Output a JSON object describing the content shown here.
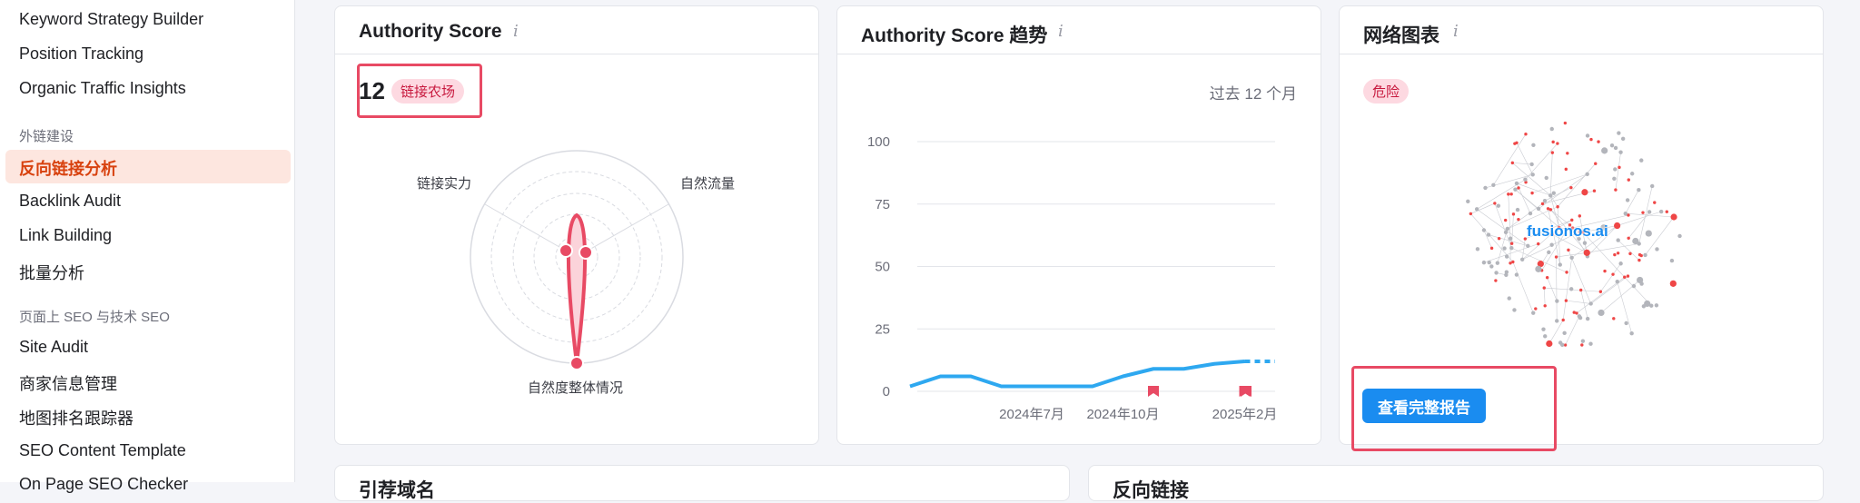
{
  "sidebar": {
    "items_top": [
      {
        "label": "Keyword Strategy Builder"
      },
      {
        "label": "Position Tracking"
      },
      {
        "label": "Organic Traffic Insights"
      }
    ],
    "section_links": "外链建设",
    "items_links": [
      {
        "label": "反向链接分析",
        "active": true
      },
      {
        "label": "Backlink Audit"
      },
      {
        "label": "Link Building"
      },
      {
        "label": "批量分析"
      }
    ],
    "section_onpage": "页面上 SEO 与技术 SEO",
    "items_onpage": [
      {
        "label": "Site Audit"
      },
      {
        "label": "商家信息管理"
      },
      {
        "label": "地图排名跟踪器"
      },
      {
        "label": "SEO Content Template"
      },
      {
        "label": "On Page SEO Checker"
      }
    ]
  },
  "authority_card": {
    "title": "Authority Score",
    "info_icon": "info-icon",
    "score": "12",
    "badge": "链接农场",
    "radar_labels": {
      "link_power": "链接实力",
      "organic_traffic": "自然流量",
      "naturalness": "自然度整体情况"
    },
    "colors": {
      "accent": "#e84a64",
      "fill": "#fbd3da"
    }
  },
  "trend_card": {
    "title": "Authority Score 趋势",
    "info_icon": "info-icon",
    "period": "过去 12 个月",
    "chart_data": {
      "type": "line",
      "title": "Authority Score 趋势",
      "x": [
        "2024-03",
        "2024-04",
        "2024-05",
        "2024-06",
        "2024-07",
        "2024-08",
        "2024-09",
        "2024-10",
        "2024-11",
        "2024-12",
        "2025-01",
        "2025-02",
        "2025-03"
      ],
      "x_tick_labels": [
        "2024年7月",
        "2024年10月",
        "2025年2月"
      ],
      "series": [
        {
          "values": [
            2,
            6,
            6,
            2,
            2,
            2,
            2,
            6,
            9,
            9,
            11,
            12,
            12
          ],
          "color": "#2ea8f0"
        }
      ],
      "markers": [
        "2024-11",
        "2025-02",
        "2025-03"
      ],
      "ylim": [
        0,
        100
      ],
      "yticks": [
        0,
        25,
        50,
        75,
        100
      ],
      "grid": true
    }
  },
  "network_card": {
    "title": "网络图表",
    "info_icon": "info-icon",
    "badge": "危险",
    "domain_label": "fusionos.ai",
    "report_button": "查看完整报告"
  },
  "bottom_cards": [
    {
      "title": "引荐域名"
    },
    {
      "title": "反向链接"
    }
  ]
}
